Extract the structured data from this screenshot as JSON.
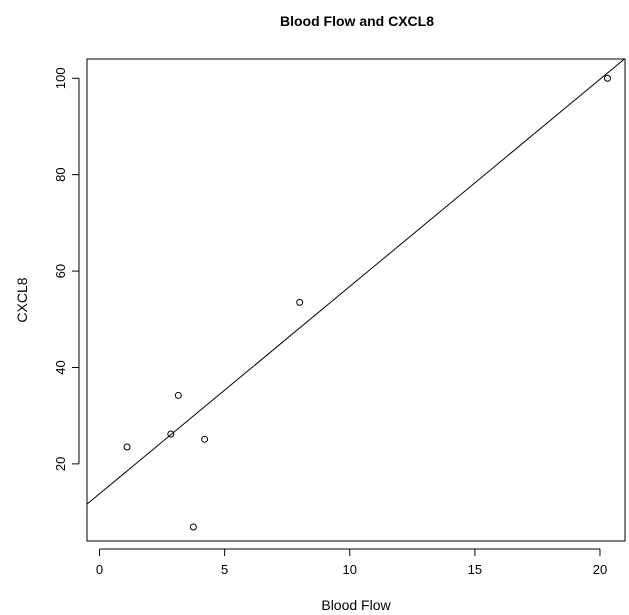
{
  "chart_data": {
    "type": "scatter",
    "title": "Blood Flow and CXCL8",
    "xlabel": "Blood Flow",
    "ylabel": "CXCL8",
    "xlim": [
      -0.5,
      21.0
    ],
    "ylim": [
      4.0,
      104.0
    ],
    "xticks": [
      0,
      5,
      10,
      15,
      20
    ],
    "yticks": [
      20,
      40,
      60,
      80,
      100
    ],
    "points": [
      {
        "x": 1.1,
        "y": 23.5
      },
      {
        "x": 2.85,
        "y": 26.2
      },
      {
        "x": 3.15,
        "y": 34.2
      },
      {
        "x": 3.75,
        "y": 6.9
      },
      {
        "x": 4.2,
        "y": 25.1
      },
      {
        "x": 8.0,
        "y": 53.5
      },
      {
        "x": 20.3,
        "y": 100.0
      }
    ],
    "fit_line": {
      "intercept": 13.8,
      "slope": 4.3
    }
  }
}
